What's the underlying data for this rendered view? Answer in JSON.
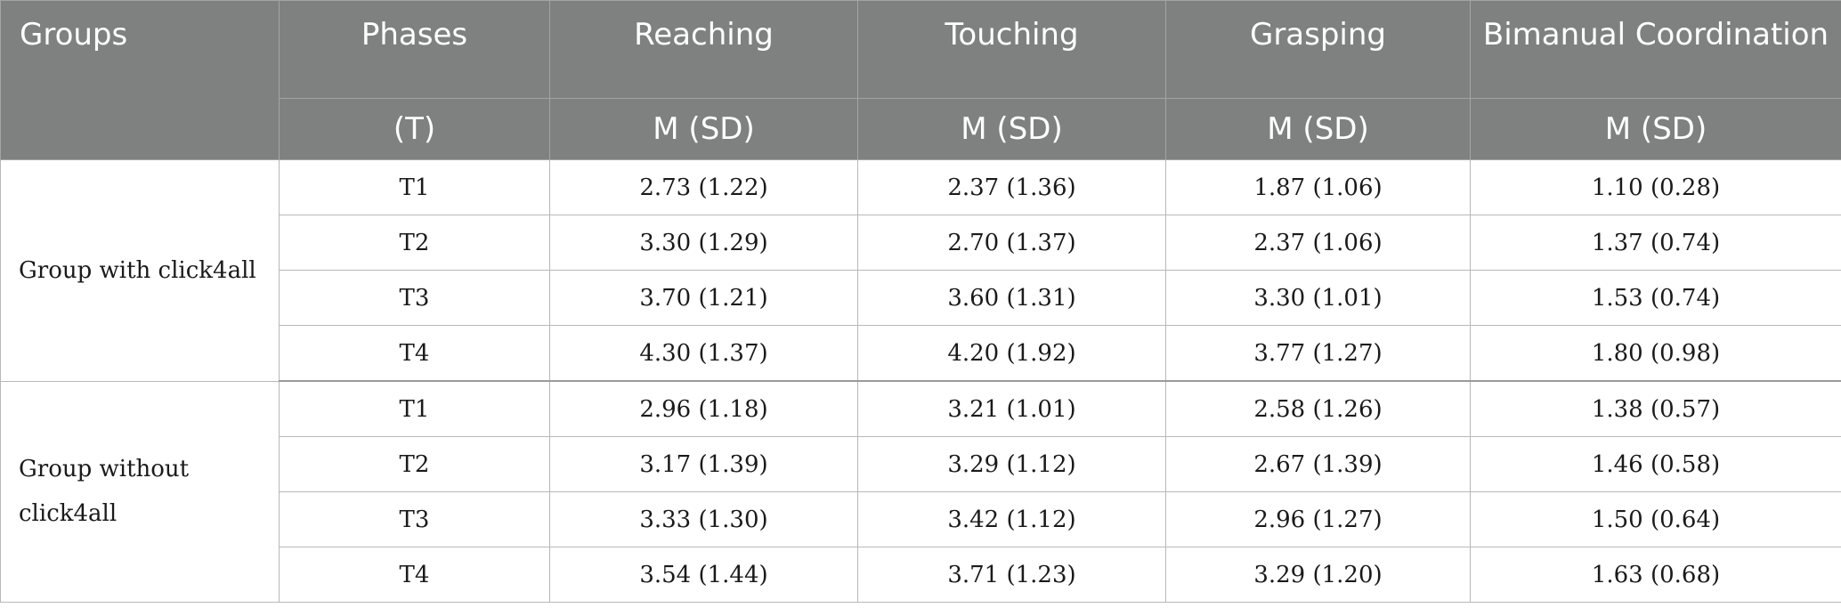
{
  "header": {
    "groups": "Groups",
    "phases": "Phases",
    "reaching": "Reaching",
    "touching": "Touching",
    "grasping": "Grasping",
    "bimanual": "Bimanual Coordination",
    "phases_sub": "(T)",
    "stat_sub": "M (SD)"
  },
  "groups": [
    {
      "name": "Group with click4all",
      "rows": [
        {
          "phase": "T1",
          "reaching": "2.73 (1.22)",
          "touching": "2.37 (1.36)",
          "grasping": "1.87 (1.06)",
          "bimanual": "1.10 (0.28)"
        },
        {
          "phase": "T2",
          "reaching": "3.30 (1.29)",
          "touching": "2.70 (1.37)",
          "grasping": "2.37 (1.06)",
          "bimanual": "1.37 (0.74)"
        },
        {
          "phase": "T3",
          "reaching": "3.70 (1.21)",
          "touching": "3.60 (1.31)",
          "grasping": "3.30 (1.01)",
          "bimanual": "1.53 (0.74)"
        },
        {
          "phase": "T4",
          "reaching": "4.30 (1.37)",
          "touching": "4.20 (1.92)",
          "grasping": "3.77 (1.27)",
          "bimanual": "1.80 (0.98)"
        }
      ]
    },
    {
      "name": "Group without click4all",
      "rows": [
        {
          "phase": "T1",
          "reaching": "2.96 (1.18)",
          "touching": "3.21 (1.01)",
          "grasping": "2.58 (1.26)",
          "bimanual": "1.38 (0.57)"
        },
        {
          "phase": "T2",
          "reaching": "3.17 (1.39)",
          "touching": "3.29 (1.12)",
          "grasping": "2.67 (1.39)",
          "bimanual": "1.46 (0.58)"
        },
        {
          "phase": "T3",
          "reaching": "3.33 (1.30)",
          "touching": "3.42 (1.12)",
          "grasping": "2.96 (1.27)",
          "bimanual": "1.50 (0.64)"
        },
        {
          "phase": "T4",
          "reaching": "3.54 (1.44)",
          "touching": "3.71 (1.23)",
          "grasping": "3.29 (1.20)",
          "bimanual": "1.63 (0.68)"
        }
      ]
    }
  ]
}
